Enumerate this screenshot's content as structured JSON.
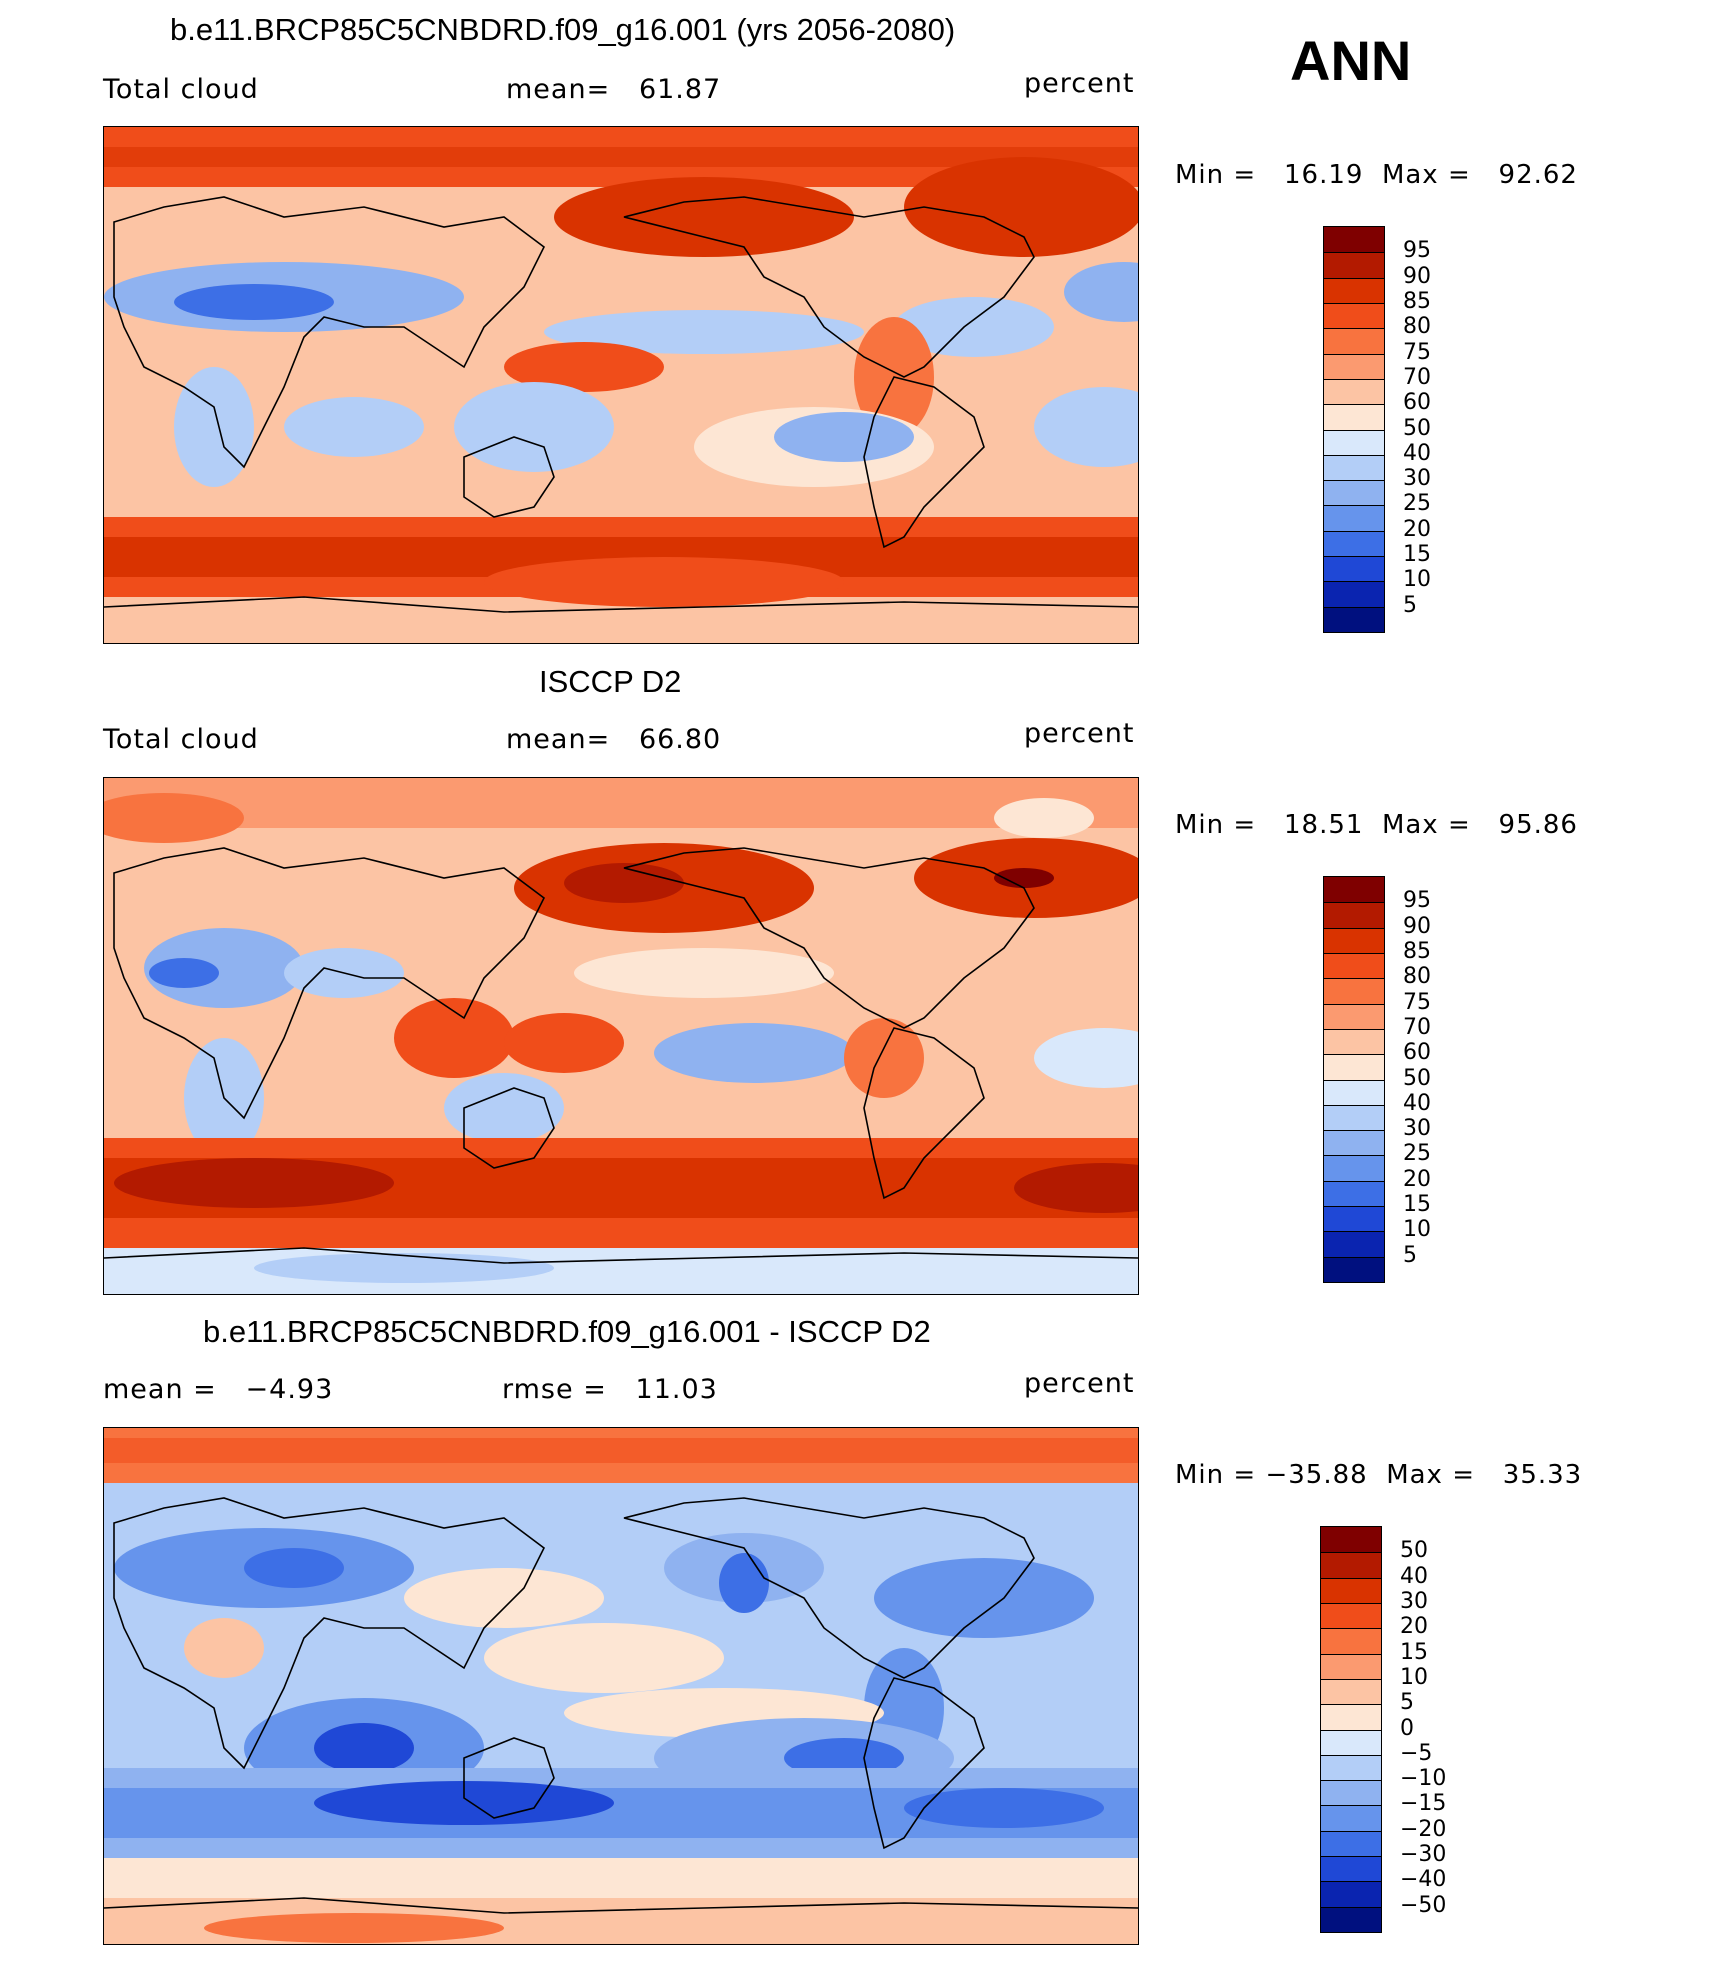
{
  "header": {
    "season": "ANN"
  },
  "panels": [
    {
      "title": "b.e11.BRCP85C5CNBDRD.f09_g16.001 (yrs 2056-2080)",
      "left": "Total cloud",
      "center": "mean=   61.87",
      "units": "percent",
      "minmax": "Min =   16.19  Max =   92.62",
      "levels": [
        "95",
        "90",
        "85",
        "80",
        "75",
        "70",
        "60",
        "50",
        "40",
        "30",
        "25",
        "20",
        "15",
        "10",
        "5"
      ]
    },
    {
      "title": "ISCCP D2",
      "left": "Total cloud",
      "center": "mean=   66.80",
      "units": "percent",
      "minmax": "Min =   18.51  Max =   95.86",
      "levels": [
        "95",
        "90",
        "85",
        "80",
        "75",
        "70",
        "60",
        "50",
        "40",
        "30",
        "25",
        "20",
        "15",
        "10",
        "5"
      ]
    },
    {
      "title": "b.e11.BRCP85C5CNBDRD.f09_g16.001 - ISCCP D2",
      "left": "mean =   −4.93",
      "center": "rmse =   11.03",
      "units": "percent",
      "minmax": "Min = −35.88  Max =   35.33",
      "levels": [
        "50",
        "40",
        "30",
        "20",
        "15",
        "10",
        "5",
        "0",
        "−5",
        "−10",
        "−15",
        "−20",
        "−30",
        "−40",
        "−50"
      ]
    }
  ],
  "colors": {
    "palette": [
      "#7f0000",
      "#b31a00",
      "#d93300",
      "#f04d1a",
      "#f8733f",
      "#fb9a70",
      "#fcc4a4",
      "#fde6d4",
      "#d9e8fb",
      "#b3cef7",
      "#8fb2f0",
      "#6694ec",
      "#3d6fe6",
      "#1f48d6",
      "#0a24b0",
      "#00107f"
    ]
  }
}
